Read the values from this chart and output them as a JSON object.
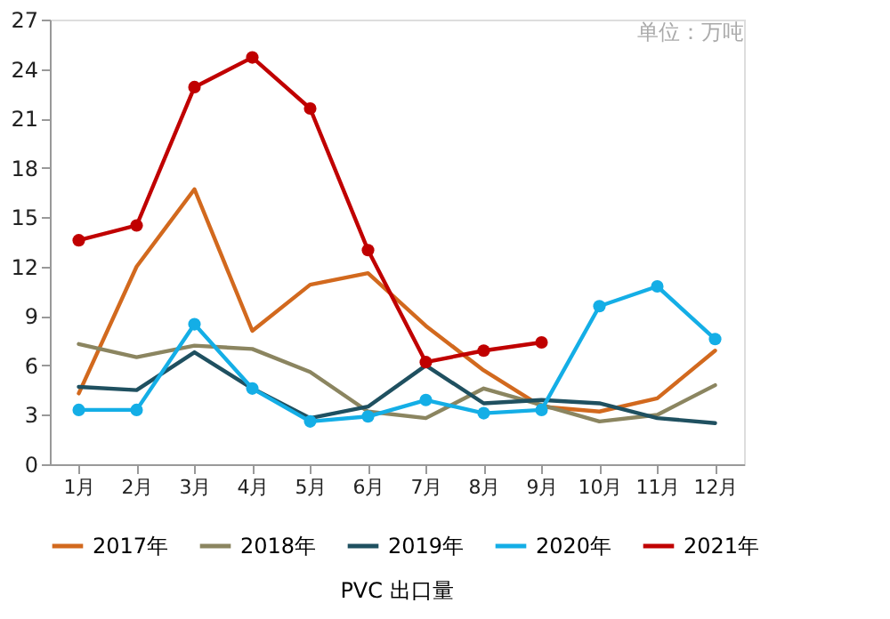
{
  "chart_data": {
    "type": "line",
    "title": "PVC 出口量",
    "annotations": [
      "单位：万吨"
    ],
    "categories": [
      "1月",
      "2月",
      "3月",
      "4月",
      "5月",
      "6月",
      "7月",
      "8月",
      "9月",
      "10月",
      "11月",
      "12月"
    ],
    "series": [
      {
        "name": "2017年",
        "color": "#d2691e",
        "marker": "none",
        "values": [
          4.3,
          12.0,
          16.7,
          8.1,
          10.9,
          11.6,
          8.4,
          5.7,
          3.5,
          3.2,
          4.0,
          6.9
        ]
      },
      {
        "name": "2018年",
        "color": "#8b8560",
        "marker": "none",
        "values": [
          7.3,
          6.5,
          7.2,
          7.0,
          5.6,
          3.2,
          2.8,
          4.6,
          3.6,
          2.6,
          3.0,
          4.8
        ]
      },
      {
        "name": "2019年",
        "color": "#1f5060",
        "marker": "none",
        "values": [
          4.7,
          4.5,
          6.8,
          4.6,
          2.8,
          3.5,
          6.0,
          3.7,
          3.9,
          3.7,
          2.8,
          2.5
        ]
      },
      {
        "name": "2020年",
        "color": "#14aee6",
        "marker": "circle",
        "values": [
          3.3,
          3.3,
          8.5,
          4.6,
          2.6,
          2.9,
          3.9,
          3.1,
          3.3,
          9.6,
          10.8,
          7.6
        ]
      },
      {
        "name": "2021年",
        "color": "#c00000",
        "marker": "circle",
        "values": [
          13.6,
          14.5,
          22.9,
          24.7,
          21.6,
          13.0,
          6.2,
          6.9,
          7.4,
          null,
          null,
          null
        ]
      }
    ],
    "ylim": [
      0,
      27
    ],
    "yticks": [
      0,
      3,
      6,
      9,
      12,
      15,
      18,
      21,
      24,
      27
    ],
    "grid": false,
    "legend": "bottom"
  }
}
